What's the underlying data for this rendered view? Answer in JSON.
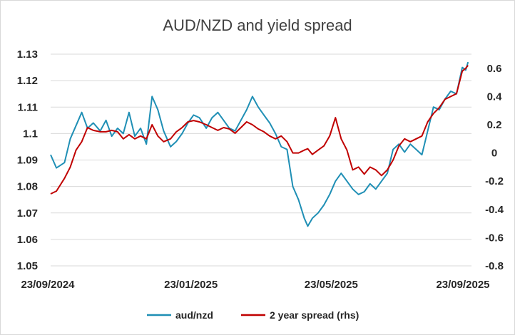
{
  "chart_data": {
    "type": "line",
    "title": "AUD/NZD and yield spread",
    "x_tick_labels": [
      "23/09/2024",
      "23/01/2025",
      "23/05/2025",
      "23/09/2025"
    ],
    "x_range": [
      "2024-09-23",
      "2025-09-23"
    ],
    "y_left": {
      "range": [
        1.05,
        1.13
      ],
      "ticks": [
        1.05,
        1.06,
        1.07,
        1.08,
        1.09,
        1.1,
        1.11,
        1.12,
        1.13
      ],
      "tick_labels": [
        "1.05",
        "1.06",
        "1.07",
        "1.08",
        "1.09",
        "1.1",
        "1.11",
        "1.12",
        "1.13"
      ]
    },
    "y_right": {
      "range": [
        -0.8,
        0.7
      ],
      "ticks": [
        -0.8,
        -0.6,
        -0.4,
        -0.2,
        0,
        0.2,
        0.4,
        0.6
      ],
      "tick_labels": [
        "-0.8",
        "-0.6",
        "-0.4",
        "-0.2",
        "0",
        "0.2",
        "0.4",
        "0.6"
      ]
    },
    "grid": "horizontal",
    "legend_position": "bottom",
    "series": [
      {
        "name": "aud/nzd",
        "axis": "left",
        "color": "#1f8fb5",
        "points": [
          [
            "2024-09-23",
            1.092
          ],
          [
            "2024-09-28",
            1.087
          ],
          [
            "2024-10-05",
            1.089
          ],
          [
            "2024-10-10",
            1.098
          ],
          [
            "2024-10-15",
            1.103
          ],
          [
            "2024-10-20",
            1.108
          ],
          [
            "2024-10-25",
            1.102
          ],
          [
            "2024-10-30",
            1.104
          ],
          [
            "2024-11-05",
            1.101
          ],
          [
            "2024-11-10",
            1.105
          ],
          [
            "2024-11-15",
            1.099
          ],
          [
            "2024-11-20",
            1.102
          ],
          [
            "2024-11-25",
            1.1
          ],
          [
            "2024-11-30",
            1.108
          ],
          [
            "2024-12-05",
            1.099
          ],
          [
            "2024-12-10",
            1.102
          ],
          [
            "2024-12-15",
            1.096
          ],
          [
            "2024-12-20",
            1.114
          ],
          [
            "2024-12-25",
            1.109
          ],
          [
            "2024-12-30",
            1.101
          ],
          [
            "2025-01-05",
            1.095
          ],
          [
            "2025-01-10",
            1.097
          ],
          [
            "2025-01-15",
            1.1
          ],
          [
            "2025-01-20",
            1.104
          ],
          [
            "2025-01-25",
            1.107
          ],
          [
            "2025-01-30",
            1.106
          ],
          [
            "2025-02-05",
            1.102
          ],
          [
            "2025-02-10",
            1.106
          ],
          [
            "2025-02-15",
            1.108
          ],
          [
            "2025-02-20",
            1.105
          ],
          [
            "2025-02-25",
            1.102
          ],
          [
            "2025-03-02",
            1.101
          ],
          [
            "2025-03-07",
            1.105
          ],
          [
            "2025-03-12",
            1.109
          ],
          [
            "2025-03-17",
            1.114
          ],
          [
            "2025-03-22",
            1.11
          ],
          [
            "2025-03-27",
            1.107
          ],
          [
            "2025-04-01",
            1.104
          ],
          [
            "2025-04-06",
            1.1
          ],
          [
            "2025-04-11",
            1.095
          ],
          [
            "2025-04-16",
            1.094
          ],
          [
            "2025-04-21",
            1.08
          ],
          [
            "2025-04-26",
            1.075
          ],
          [
            "2025-05-01",
            1.068
          ],
          [
            "2025-05-04",
            1.065
          ],
          [
            "2025-05-08",
            1.068
          ],
          [
            "2025-05-13",
            1.07
          ],
          [
            "2025-05-18",
            1.073
          ],
          [
            "2025-05-23",
            1.077
          ],
          [
            "2025-05-28",
            1.082
          ],
          [
            "2025-06-02",
            1.085
          ],
          [
            "2025-06-07",
            1.082
          ],
          [
            "2025-06-12",
            1.079
          ],
          [
            "2025-06-17",
            1.077
          ],
          [
            "2025-06-22",
            1.078
          ],
          [
            "2025-06-27",
            1.081
          ],
          [
            "2025-07-02",
            1.079
          ],
          [
            "2025-07-07",
            1.082
          ],
          [
            "2025-07-12",
            1.085
          ],
          [
            "2025-07-17",
            1.094
          ],
          [
            "2025-07-22",
            1.096
          ],
          [
            "2025-07-27",
            1.093
          ],
          [
            "2025-08-01",
            1.096
          ],
          [
            "2025-08-06",
            1.094
          ],
          [
            "2025-08-11",
            1.092
          ],
          [
            "2025-08-16",
            1.101
          ],
          [
            "2025-08-21",
            1.11
          ],
          [
            "2025-08-26",
            1.109
          ],
          [
            "2025-08-31",
            1.113
          ],
          [
            "2025-09-05",
            1.116
          ],
          [
            "2025-09-10",
            1.115
          ],
          [
            "2025-09-15",
            1.125
          ],
          [
            "2025-09-18",
            1.124
          ],
          [
            "2025-09-20",
            1.127
          ]
        ]
      },
      {
        "name": "2 year spread (rhs)",
        "axis": "right",
        "color": "#c00000",
        "points": [
          [
            "2024-09-23",
            -0.29
          ],
          [
            "2024-09-28",
            -0.27
          ],
          [
            "2024-10-05",
            -0.18
          ],
          [
            "2024-10-10",
            -0.1
          ],
          [
            "2024-10-15",
            0.02
          ],
          [
            "2024-10-20",
            0.08
          ],
          [
            "2024-10-25",
            0.18
          ],
          [
            "2024-10-30",
            0.16
          ],
          [
            "2024-11-05",
            0.15
          ],
          [
            "2024-11-10",
            0.15
          ],
          [
            "2024-11-15",
            0.16
          ],
          [
            "2024-11-20",
            0.15
          ],
          [
            "2024-11-25",
            0.1
          ],
          [
            "2024-11-30",
            0.13
          ],
          [
            "2024-12-05",
            0.1
          ],
          [
            "2024-12-10",
            0.12
          ],
          [
            "2024-12-15",
            0.1
          ],
          [
            "2024-12-20",
            0.2
          ],
          [
            "2024-12-25",
            0.12
          ],
          [
            "2024-12-30",
            0.08
          ],
          [
            "2025-01-05",
            0.1
          ],
          [
            "2025-01-10",
            0.15
          ],
          [
            "2025-01-15",
            0.18
          ],
          [
            "2025-01-20",
            0.22
          ],
          [
            "2025-01-25",
            0.23
          ],
          [
            "2025-01-30",
            0.22
          ],
          [
            "2025-02-05",
            0.2
          ],
          [
            "2025-02-10",
            0.18
          ],
          [
            "2025-02-15",
            0.16
          ],
          [
            "2025-02-20",
            0.18
          ],
          [
            "2025-02-25",
            0.17
          ],
          [
            "2025-03-02",
            0.14
          ],
          [
            "2025-03-07",
            0.18
          ],
          [
            "2025-03-12",
            0.22
          ],
          [
            "2025-03-17",
            0.2
          ],
          [
            "2025-03-22",
            0.17
          ],
          [
            "2025-03-27",
            0.15
          ],
          [
            "2025-04-01",
            0.12
          ],
          [
            "2025-04-06",
            0.1
          ],
          [
            "2025-04-11",
            0.12
          ],
          [
            "2025-04-16",
            0.08
          ],
          [
            "2025-04-21",
            0.0
          ],
          [
            "2025-04-26",
            0.0
          ],
          [
            "2025-05-01",
            0.02
          ],
          [
            "2025-05-04",
            0.03
          ],
          [
            "2025-05-08",
            -0.01
          ],
          [
            "2025-05-13",
            0.02
          ],
          [
            "2025-05-18",
            0.05
          ],
          [
            "2025-05-23",
            0.12
          ],
          [
            "2025-05-28",
            0.25
          ],
          [
            "2025-06-02",
            0.1
          ],
          [
            "2025-06-07",
            0.02
          ],
          [
            "2025-06-12",
            -0.12
          ],
          [
            "2025-06-17",
            -0.1
          ],
          [
            "2025-06-22",
            -0.15
          ],
          [
            "2025-06-27",
            -0.1
          ],
          [
            "2025-07-02",
            -0.12
          ],
          [
            "2025-07-07",
            -0.16
          ],
          [
            "2025-07-12",
            -0.12
          ],
          [
            "2025-07-17",
            -0.05
          ],
          [
            "2025-07-22",
            0.05
          ],
          [
            "2025-07-27",
            0.1
          ],
          [
            "2025-08-01",
            0.08
          ],
          [
            "2025-08-06",
            0.1
          ],
          [
            "2025-08-11",
            0.12
          ],
          [
            "2025-08-16",
            0.22
          ],
          [
            "2025-08-21",
            0.28
          ],
          [
            "2025-08-26",
            0.32
          ],
          [
            "2025-08-31",
            0.38
          ],
          [
            "2025-09-05",
            0.4
          ],
          [
            "2025-09-10",
            0.42
          ],
          [
            "2025-09-15",
            0.58
          ],
          [
            "2025-09-18",
            0.6
          ],
          [
            "2025-09-20",
            0.62
          ]
        ]
      }
    ]
  }
}
